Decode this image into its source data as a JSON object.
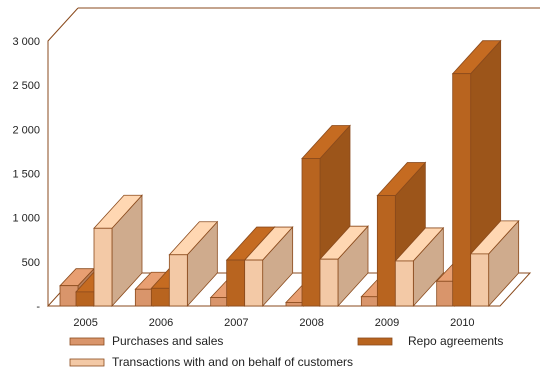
{
  "chart_data": {
    "type": "bar",
    "categories": [
      "2005",
      "2006",
      "2007",
      "2008",
      "2009",
      "2010"
    ],
    "series": [
      {
        "name": "Purchases and sales",
        "values": [
          230,
          190,
          95,
          40,
          105,
          280
        ],
        "color": "#d9956b"
      },
      {
        "name": "Repo agreements",
        "values": [
          160,
          200,
          520,
          1670,
          1250,
          2630
        ],
        "color": "#b8641f"
      },
      {
        "name": "Transactions with and on behalf of customers",
        "values": [
          880,
          580,
          520,
          530,
          510,
          590
        ],
        "color": "#f3c9a6"
      }
    ],
    "yticks": [
      "-",
      "500",
      "1 000",
      "1 500",
      "2 000",
      "2 500",
      "3 000"
    ],
    "ylim": [
      0,
      3000
    ],
    "grid": false,
    "three_d": true,
    "legend_position": "bottom"
  }
}
